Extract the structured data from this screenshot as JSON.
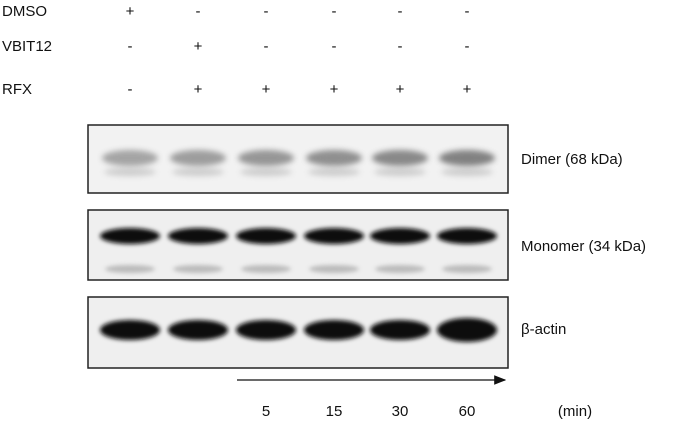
{
  "conditions": [
    {
      "label": "DMSO",
      "signs": [
        "+",
        "-",
        "-",
        "-",
        "-",
        "-"
      ]
    },
    {
      "label": "VBIT12",
      "signs": [
        "-",
        "+",
        "-",
        "-",
        "-",
        "-"
      ]
    },
    {
      "label": "RFX",
      "signs": [
        "-",
        "+",
        "+",
        "+",
        "+",
        "+"
      ]
    }
  ],
  "blots": [
    {
      "label": "Dimer (68 kDa)"
    },
    {
      "label": "Monomer (34 kDa)"
    },
    {
      "label": "β-actin"
    }
  ],
  "time": {
    "points": [
      5,
      15,
      30,
      60
    ],
    "unit": "(min)"
  }
}
